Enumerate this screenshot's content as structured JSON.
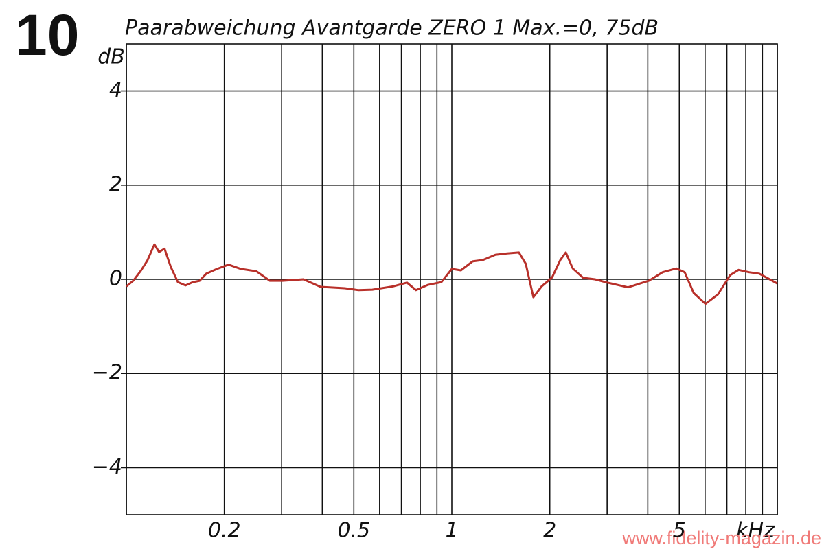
{
  "chart_data": {
    "type": "line",
    "panel_number": "10",
    "title": "Paarabweichung Avantgarde ZERO 1 Max.=0, 75dB",
    "y_unit": "dB",
    "x_unit": "kHz",
    "watermark": "www.fidelity-magazin.de",
    "x_log": true,
    "xlim": [
      0.1,
      10
    ],
    "xticks": [
      0.2,
      0.5,
      1,
      2,
      5
    ],
    "x_grid_lines": [
      0.1,
      0.2,
      0.3,
      0.4,
      0.5,
      0.6,
      0.7,
      0.8,
      0.9,
      1,
      2,
      3,
      4,
      5,
      6,
      7,
      8,
      9,
      10
    ],
    "ylim": [
      -5,
      5
    ],
    "yticks": [
      4,
      2,
      0,
      {
        "value": -2,
        "label": "−2"
      },
      {
        "value": -4,
        "label": "−4"
      }
    ],
    "grid": true,
    "x": [
      0.1,
      0.105,
      0.111,
      0.116,
      0.122,
      0.126,
      0.131,
      0.137,
      0.144,
      0.152,
      0.16,
      0.168,
      0.176,
      0.19,
      0.206,
      0.225,
      0.251,
      0.276,
      0.302,
      0.35,
      0.395,
      0.469,
      0.517,
      0.57,
      0.66,
      0.728,
      0.776,
      0.843,
      0.929,
      1.0,
      1.066,
      1.158,
      1.246,
      1.361,
      1.479,
      1.607,
      1.687,
      1.781,
      1.888,
      2.032,
      2.154,
      2.24,
      2.352,
      2.532,
      2.751,
      3.004,
      3.478,
      4.029,
      4.443,
      4.898,
      5.194,
      5.535,
      6.016,
      6.568,
      7.171,
      7.604,
      8.185,
      8.807,
      9.476,
      10
    ],
    "series": [
      {
        "color": "#b8302a",
        "values": [
          -0.15,
          -0.03,
          0.19,
          0.4,
          0.74,
          0.58,
          0.65,
          0.26,
          -0.06,
          -0.13,
          -0.06,
          -0.03,
          0.12,
          0.22,
          0.31,
          0.22,
          0.17,
          -0.03,
          -0.03,
          0,
          -0.16,
          -0.19,
          -0.23,
          -0.22,
          -0.15,
          -0.07,
          -0.23,
          -0.12,
          -0.06,
          0.22,
          0.19,
          0.38,
          0.41,
          0.52,
          0.55,
          0.57,
          0.33,
          -0.38,
          -0.15,
          0.04,
          0.41,
          0.57,
          0.23,
          0.03,
          0,
          -0.07,
          -0.17,
          -0.03,
          0.15,
          0.23,
          0.15,
          -0.29,
          -0.52,
          -0.32,
          0.09,
          0.2,
          0.15,
          0.12,
          0,
          -0.09
        ]
      }
    ]
  }
}
